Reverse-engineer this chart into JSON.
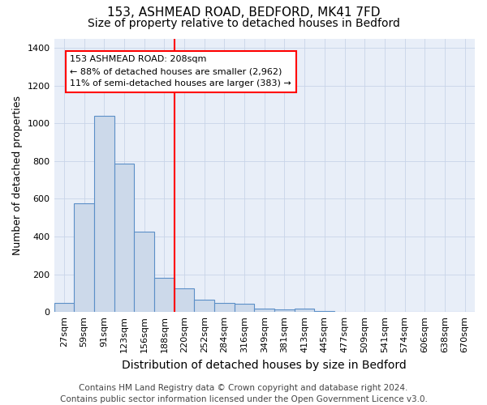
{
  "title1": "153, ASHMEAD ROAD, BEDFORD, MK41 7FD",
  "title2": "Size of property relative to detached houses in Bedford",
  "xlabel": "Distribution of detached houses by size in Bedford",
  "ylabel": "Number of detached properties",
  "footer": "Contains HM Land Registry data © Crown copyright and database right 2024.\nContains public sector information licensed under the Open Government Licence v3.0.",
  "categories": [
    "27sqm",
    "59sqm",
    "91sqm",
    "123sqm",
    "156sqm",
    "188sqm",
    "220sqm",
    "252sqm",
    "284sqm",
    "316sqm",
    "349sqm",
    "381sqm",
    "413sqm",
    "445sqm",
    "477sqm",
    "509sqm",
    "541sqm",
    "574sqm",
    "606sqm",
    "638sqm",
    "670sqm"
  ],
  "values": [
    50,
    575,
    1040,
    785,
    425,
    180,
    125,
    65,
    50,
    45,
    20,
    15,
    20,
    5,
    2,
    1,
    0,
    0,
    0,
    0,
    0
  ],
  "bar_color": "#ccd9ea",
  "bar_edge_color": "#5b8fc7",
  "red_line_index": 6,
  "annotation_line1": "153 ASHMEAD ROAD: 208sqm",
  "annotation_line2": "← 88% of detached houses are smaller (2,962)",
  "annotation_line3": "11% of semi-detached houses are larger (383) →",
  "ylim": [
    0,
    1450
  ],
  "yticks": [
    0,
    200,
    400,
    600,
    800,
    1000,
    1200,
    1400
  ],
  "grid_color": "#c8d4e8",
  "background_color": "#e8eef8",
  "title1_fontsize": 11,
  "title2_fontsize": 10,
  "xlabel_fontsize": 10,
  "ylabel_fontsize": 9,
  "tick_fontsize": 8,
  "footer_fontsize": 7.5
}
